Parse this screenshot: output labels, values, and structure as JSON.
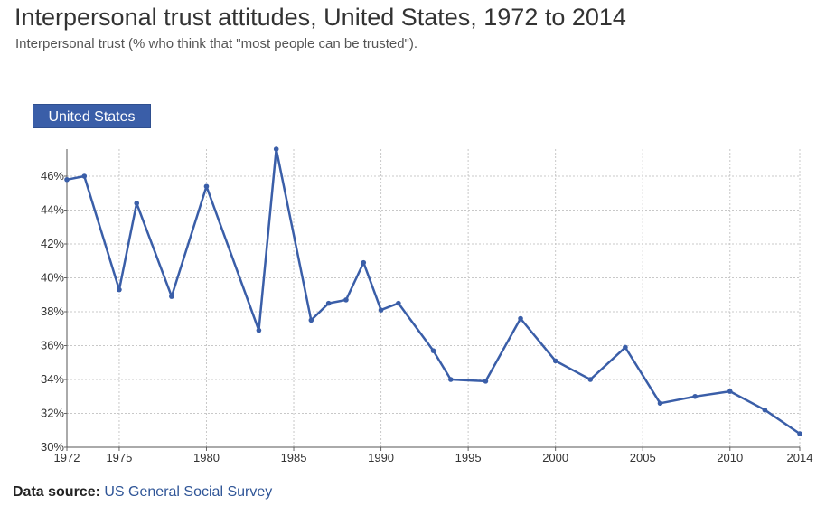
{
  "header": {
    "title": "Interpersonal trust attitudes, United States, 1972 to 2014",
    "subtitle": "Interpersonal trust (% who think that \"most people can be trusted\")."
  },
  "tabs": [
    {
      "label": "United States",
      "active": true
    }
  ],
  "footer": {
    "label": "Data source:",
    "link_text": "US General Social Survey"
  },
  "colors": {
    "series": "#3a5ea8",
    "tab_background": "#3a5ea8",
    "link": "#2f5597"
  },
  "chart_data": {
    "type": "line",
    "title": "Interpersonal trust attitudes, United States, 1972 to 2014",
    "subtitle": "Interpersonal trust (% who think that \"most people can be trusted\").",
    "xlabel": "",
    "ylabel": "",
    "xlim": [
      1972,
      2014
    ],
    "ylim": [
      30,
      47.6
    ],
    "x_ticks": [
      1972,
      1975,
      1980,
      1985,
      1990,
      1995,
      2000,
      2005,
      2010,
      2014
    ],
    "y_ticks": [
      30,
      32,
      34,
      36,
      38,
      40,
      42,
      44,
      46
    ],
    "y_tick_suffix": "%",
    "grid": true,
    "legend": "top-left",
    "series": [
      {
        "name": "United States",
        "color": "#3a5ea8",
        "points": [
          [
            1972,
            45.8
          ],
          [
            1973,
            46.0
          ],
          [
            1975,
            39.3
          ],
          [
            1976,
            44.4
          ],
          [
            1978,
            38.9
          ],
          [
            1980,
            45.4
          ],
          [
            1983,
            36.9
          ],
          [
            1984,
            47.6
          ],
          [
            1986,
            37.5
          ],
          [
            1987,
            38.5
          ],
          [
            1988,
            38.7
          ],
          [
            1989,
            40.9
          ],
          [
            1990,
            38.1
          ],
          [
            1991,
            38.5
          ],
          [
            1993,
            35.7
          ],
          [
            1994,
            34.0
          ],
          [
            1996,
            33.9
          ],
          [
            1998,
            37.6
          ],
          [
            2000,
            35.1
          ],
          [
            2002,
            34.0
          ],
          [
            2004,
            35.9
          ],
          [
            2006,
            32.6
          ],
          [
            2008,
            33.0
          ],
          [
            2010,
            33.3
          ],
          [
            2012,
            32.2
          ],
          [
            2014,
            30.8
          ]
        ]
      }
    ]
  }
}
